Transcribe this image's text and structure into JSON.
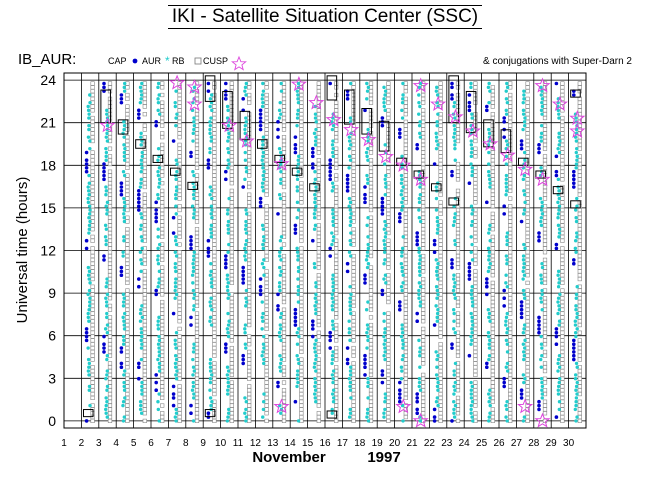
{
  "header": {
    "title": "IKI - Satellite Situation Center (SSC)"
  },
  "chart_data": {
    "type": "scatter",
    "dataset_label": "IB_AUR:",
    "legend": [
      {
        "key": "cap",
        "label": "CAP",
        "marker": "filled-dot",
        "color": "#0000cc"
      },
      {
        "key": "aur",
        "label": "AUR",
        "marker": "asterisk",
        "color": "#22cccc"
      },
      {
        "key": "rb",
        "label": "RB",
        "marker": "small-square",
        "color": "#888888"
      },
      {
        "key": "cusp",
        "label": "CUSP",
        "marker": "open-star",
        "color": "#dd44dd"
      }
    ],
    "note": "& conjugations with Super-Darn 2",
    "ylabel": "Universal time (hours)",
    "xlabel_month": "November",
    "xlabel_year": "1997",
    "x_ticks": [
      1,
      2,
      3,
      4,
      5,
      6,
      7,
      8,
      9,
      10,
      11,
      12,
      13,
      14,
      15,
      16,
      17,
      18,
      19,
      20,
      21,
      22,
      23,
      24,
      25,
      26,
      27,
      28,
      29,
      30
    ],
    "y_ticks": [
      0,
      3,
      6,
      9,
      12,
      15,
      18,
      21,
      24
    ],
    "xlim": [
      1,
      31
    ],
    "ylim": [
      -0.5,
      24.5
    ],
    "grid": true,
    "days": [
      2,
      3,
      4,
      5,
      6,
      7,
      8,
      9,
      10,
      11,
      12,
      13,
      14,
      15,
      16,
      17,
      18,
      19,
      20,
      21,
      22,
      23,
      24,
      25,
      26,
      27,
      28,
      29,
      30
    ],
    "conjugation_boxes": [
      {
        "day": 2,
        "start": 0.3,
        "end": 0.8
      },
      {
        "day": 3,
        "start": 21.0,
        "end": 23.3
      },
      {
        "day": 4,
        "start": 20.2,
        "end": 21.2
      },
      {
        "day": 5,
        "start": 19.2,
        "end": 19.8
      },
      {
        "day": 6,
        "start": 18.2,
        "end": 18.7
      },
      {
        "day": 7,
        "start": 17.3,
        "end": 17.8
      },
      {
        "day": 8,
        "start": 16.3,
        "end": 16.8
      },
      {
        "day": 9,
        "start": 0.3,
        "end": 0.8
      },
      {
        "day": 9,
        "start": 22.5,
        "end": 24.3
      },
      {
        "day": 10,
        "start": 20.6,
        "end": 23.2
      },
      {
        "day": 11,
        "start": 19.8,
        "end": 21.8
      },
      {
        "day": 12,
        "start": 19.2,
        "end": 19.8
      },
      {
        "day": 13,
        "start": 18.2,
        "end": 18.7
      },
      {
        "day": 14,
        "start": 17.3,
        "end": 17.8
      },
      {
        "day": 15,
        "start": 16.2,
        "end": 16.7
      },
      {
        "day": 16,
        "start": 0.2,
        "end": 0.7
      },
      {
        "day": 16,
        "start": 22.6,
        "end": 24.3
      },
      {
        "day": 17,
        "start": 20.9,
        "end": 23.3
      },
      {
        "day": 18,
        "start": 20.2,
        "end": 22.0
      },
      {
        "day": 19,
        "start": 19.0,
        "end": 21.1
      },
      {
        "day": 20,
        "start": 18.0,
        "end": 18.5
      },
      {
        "day": 21,
        "start": 17.1,
        "end": 17.6
      },
      {
        "day": 22,
        "start": 16.2,
        "end": 16.7
      },
      {
        "day": 23,
        "start": 15.2,
        "end": 15.7
      },
      {
        "day": 23,
        "start": 21.0,
        "end": 24.3
      },
      {
        "day": 24,
        "start": 20.3,
        "end": 23.2
      },
      {
        "day": 25,
        "start": 19.3,
        "end": 21.2
      },
      {
        "day": 26,
        "start": 18.9,
        "end": 20.5
      },
      {
        "day": 27,
        "start": 18.0,
        "end": 18.5
      },
      {
        "day": 28,
        "start": 17.1,
        "end": 17.6
      },
      {
        "day": 29,
        "start": 16.0,
        "end": 16.5
      },
      {
        "day": 30,
        "start": 15.0,
        "end": 15.5
      },
      {
        "day": 30,
        "start": 22.8,
        "end": 23.3
      }
    ],
    "cusp_events": [
      {
        "day": 3,
        "ut": 20.8
      },
      {
        "day": 7,
        "ut": 23.8
      },
      {
        "day": 8,
        "ut": 22.3
      },
      {
        "day": 8,
        "ut": 23.5
      },
      {
        "day": 10,
        "ut": 20.8
      },
      {
        "day": 11,
        "ut": 19.7
      },
      {
        "day": 13,
        "ut": 1.0
      },
      {
        "day": 13,
        "ut": 18.1
      },
      {
        "day": 14,
        "ut": 23.7
      },
      {
        "day": 15,
        "ut": 22.4
      },
      {
        "day": 16,
        "ut": 21.2
      },
      {
        "day": 17,
        "ut": 20.5
      },
      {
        "day": 18,
        "ut": 19.8
      },
      {
        "day": 19,
        "ut": 18.6
      },
      {
        "day": 20,
        "ut": 1.0
      },
      {
        "day": 20,
        "ut": 18.0
      },
      {
        "day": 21,
        "ut": 0.0
      },
      {
        "day": 21,
        "ut": 17.0
      },
      {
        "day": 21,
        "ut": 23.6
      },
      {
        "day": 22,
        "ut": 22.3
      },
      {
        "day": 23,
        "ut": 21.4
      },
      {
        "day": 24,
        "ut": 20.4
      },
      {
        "day": 25,
        "ut": 19.5
      },
      {
        "day": 26,
        "ut": 18.7
      },
      {
        "day": 27,
        "ut": 1.0
      },
      {
        "day": 27,
        "ut": 17.7
      },
      {
        "day": 28,
        "ut": 0.0
      },
      {
        "day": 28,
        "ut": 17.0
      },
      {
        "day": 28,
        "ut": 23.6
      },
      {
        "day": 29,
        "ut": 22.3
      },
      {
        "day": 30,
        "ut": 21.3
      },
      {
        "day": 30,
        "ut": 20.4
      }
    ]
  }
}
